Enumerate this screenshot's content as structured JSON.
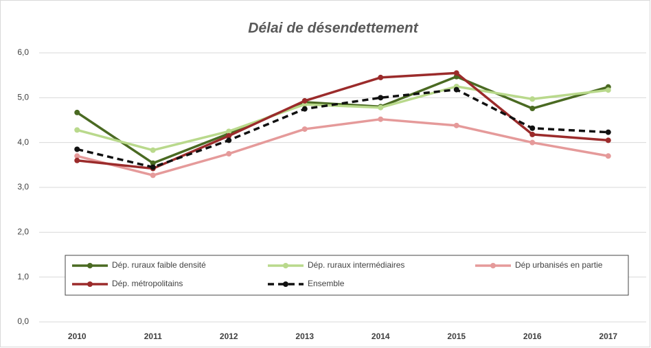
{
  "chart_data": {
    "type": "line",
    "title": "Délai de désendettement",
    "categories": [
      "2010",
      "2011",
      "2012",
      "2013",
      "2014",
      "2015",
      "2016",
      "2017"
    ],
    "ylim": [
      0,
      6
    ],
    "yticks": [
      {
        "value": 0,
        "label": "0,0"
      },
      {
        "value": 1,
        "label": "1,0"
      },
      {
        "value": 2,
        "label": "2,0"
      },
      {
        "value": 3,
        "label": "3,0"
      },
      {
        "value": 4,
        "label": "4,0"
      },
      {
        "value": 5,
        "label": "5,0"
      },
      {
        "value": 6,
        "label": "6,0"
      }
    ],
    "grid": true,
    "series": [
      {
        "name": "Dép. ruraux faible densité",
        "color": "#4a6a22",
        "values": [
          4.67,
          3.54,
          4.2,
          4.9,
          4.8,
          5.47,
          4.76,
          5.24
        ]
      },
      {
        "name": "Dép. ruraux intermédiaires",
        "color": "#b9d98c",
        "values": [
          4.28,
          3.83,
          4.25,
          4.85,
          4.78,
          5.25,
          4.97,
          5.17
        ]
      },
      {
        "name": "Dép urbanisés en partie",
        "color": "#e59a9a",
        "values": [
          3.7,
          3.27,
          3.75,
          4.3,
          4.52,
          4.38,
          4.0,
          3.7
        ]
      },
      {
        "name": "Dép. métropolitains",
        "color": "#9b2b2b",
        "values": [
          3.6,
          3.42,
          4.15,
          4.93,
          5.45,
          5.55,
          4.18,
          4.05
        ]
      },
      {
        "name": "Ensemble",
        "color": "#111111",
        "dashed": true,
        "values": [
          3.85,
          3.45,
          4.05,
          4.75,
          5.0,
          5.18,
          4.32,
          4.23
        ]
      }
    ]
  }
}
